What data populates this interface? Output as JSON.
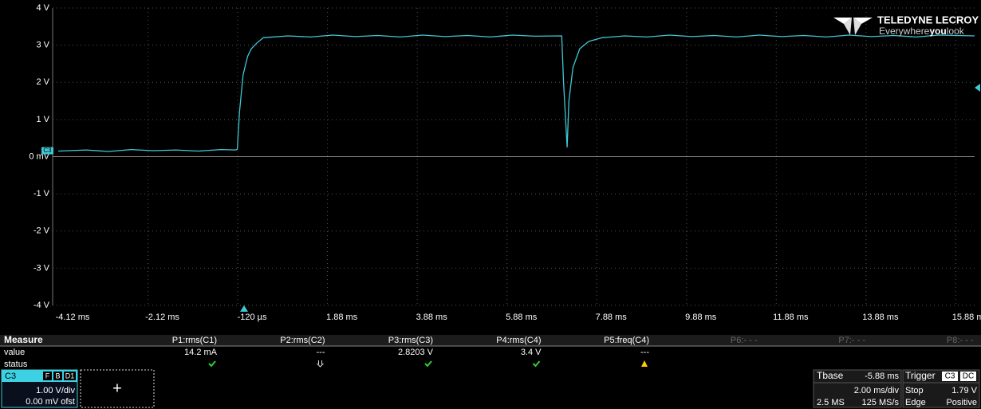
{
  "logo": {
    "brand": "TELEDYNE LECROY",
    "tagline": [
      "Everywhere",
      "you",
      "look"
    ]
  },
  "chart_data": {
    "type": "line",
    "x": [
      -4.12,
      -3.5,
      -3.0,
      -2.5,
      -2.0,
      -1.5,
      -1.0,
      -0.5,
      -0.16,
      -0.13,
      -0.08,
      0.0,
      0.1,
      0.18,
      0.3,
      0.45,
      1.0,
      1.5,
      2.0,
      2.5,
      3.0,
      3.5,
      4.0,
      4.5,
      5.0,
      5.5,
      6.0,
      6.5,
      7.1,
      7.14,
      7.22,
      7.26,
      7.35,
      7.5,
      7.7,
      8.0,
      8.5,
      9.0,
      9.5,
      10.0,
      10.5,
      11.0,
      11.5,
      12.0,
      12.5,
      13.0,
      13.5,
      14.0,
      14.5,
      15.0,
      15.5,
      16.3
    ],
    "series": [
      {
        "name": "C3",
        "color": "#40c8d4",
        "values": [
          0.15,
          0.18,
          0.14,
          0.19,
          0.16,
          0.18,
          0.15,
          0.19,
          0.18,
          0.2,
          1.2,
          2.2,
          2.7,
          2.9,
          3.05,
          3.2,
          3.25,
          3.22,
          3.27,
          3.23,
          3.26,
          3.22,
          3.27,
          3.23,
          3.26,
          3.22,
          3.27,
          3.24,
          3.25,
          2.0,
          0.25,
          1.5,
          2.4,
          2.9,
          3.1,
          3.2,
          3.25,
          3.22,
          3.27,
          3.23,
          3.26,
          3.22,
          3.27,
          3.23,
          3.26,
          3.22,
          3.27,
          3.23,
          3.26,
          3.22,
          3.27,
          3.25
        ]
      }
    ],
    "xlim": [
      -4.12,
      16.3
    ],
    "ylim": [
      -4,
      4
    ],
    "xticks": [
      {
        "value": -4.12,
        "label": "-4.12 ms"
      },
      {
        "value": -2.12,
        "label": "-2.12 ms"
      },
      {
        "value": -0.12,
        "label": "-120 µs"
      },
      {
        "value": 1.88,
        "label": "1.88 ms"
      },
      {
        "value": 3.88,
        "label": "3.88 ms"
      },
      {
        "value": 5.88,
        "label": "5.88 ms"
      },
      {
        "value": 7.88,
        "label": "7.88 ms"
      },
      {
        "value": 9.88,
        "label": "9.88 ms"
      },
      {
        "value": 11.88,
        "label": "11.88 ms"
      },
      {
        "value": 13.88,
        "label": "13.88 ms"
      },
      {
        "value": 15.88,
        "label": "15.88 ms"
      }
    ],
    "yticks": [
      {
        "value": 4,
        "label": "4 V"
      },
      {
        "value": 3,
        "label": "3 V"
      },
      {
        "value": 2,
        "label": "2 V"
      },
      {
        "value": 1,
        "label": "1 V"
      },
      {
        "value": 0,
        "label": "0 mV"
      },
      {
        "value": -1,
        "label": "-1 V"
      },
      {
        "value": -2,
        "label": "-2 V"
      },
      {
        "value": -3,
        "label": "-3 V"
      },
      {
        "value": -4,
        "label": "-4 V"
      }
    ],
    "grid": true
  },
  "measure": {
    "title": "Measure",
    "rows": [
      "value",
      "status"
    ],
    "params": [
      {
        "name": "P1:rms(C1)",
        "value": "14.2 mA",
        "status": "ok"
      },
      {
        "name": "P2:rms(C2)",
        "value": "---",
        "status": "down"
      },
      {
        "name": "P3:rms(C3)",
        "value": "2.8203 V",
        "status": "ok"
      },
      {
        "name": "P4:rms(C4)",
        "value": "3.4 V",
        "status": "ok"
      },
      {
        "name": "P5:freq(C4)",
        "value": "---",
        "status": "warn"
      },
      {
        "name": "P6:- - -"
      },
      {
        "name": "P7:- - -"
      },
      {
        "name": "P8:- - -"
      }
    ]
  },
  "channel": {
    "name": "C3",
    "badges": [
      "F",
      "B",
      "D1"
    ],
    "scale": "1.00 V/div",
    "offset": "0.00 mV ofst"
  },
  "add_button": "+",
  "timebase": {
    "title": "Tbase",
    "delay": "-5.88 ms",
    "scale": "2.00 ms/div",
    "memory": "2.5 MS",
    "rate": "125 MS/s"
  },
  "trigger": {
    "title": "Trigger",
    "source": "C3",
    "coupling": "DC",
    "mode": "Stop",
    "level": "1.79 V",
    "type": "Edge",
    "slope": "Positive"
  }
}
